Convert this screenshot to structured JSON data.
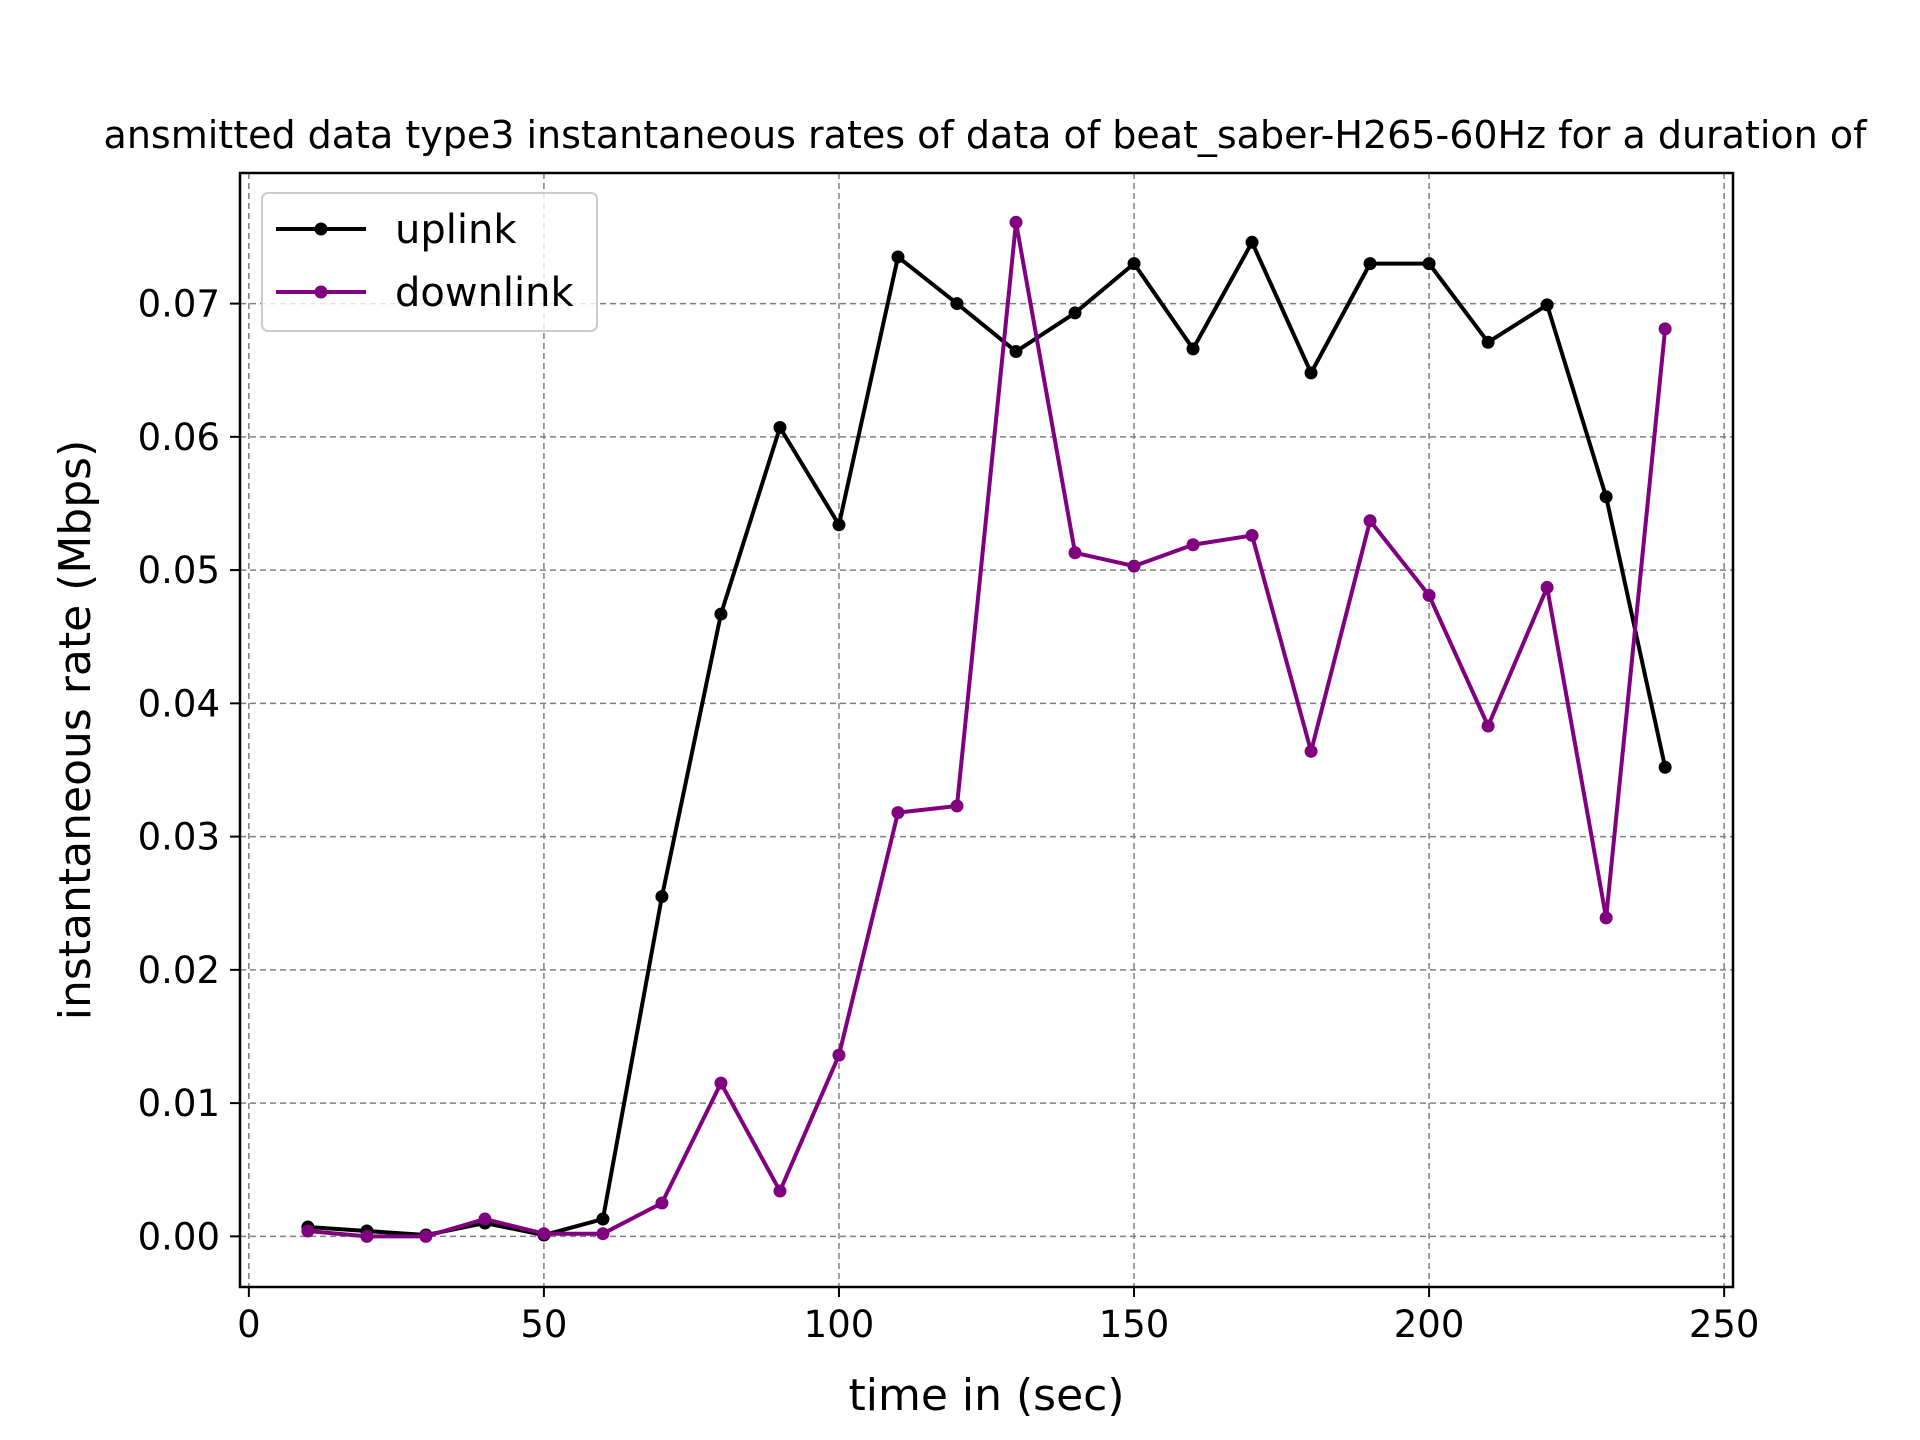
{
  "chart_data": {
    "type": "line",
    "title": "ansmitted data type3 instantaneous rates of data of beat_saber-H265-60Hz for a duration of",
    "xlabel": "time in (sec)",
    "ylabel": "instantaneous rate (Mbps)",
    "xlim": [
      -1.5,
      251.5
    ],
    "ylim": [
      -0.0038,
      0.0798
    ],
    "xticks": [
      0,
      50,
      100,
      150,
      200,
      250
    ],
    "xtick_labels": [
      "0",
      "50",
      "100",
      "150",
      "200",
      "250"
    ],
    "yticks": [
      0.0,
      0.01,
      0.02,
      0.03,
      0.04,
      0.05,
      0.06,
      0.07
    ],
    "ytick_labels": [
      "0.00",
      "0.01",
      "0.02",
      "0.03",
      "0.04",
      "0.05",
      "0.06",
      "0.07"
    ],
    "grid": true,
    "legend_position": "top-left",
    "x": [
      10,
      20,
      30,
      40,
      50,
      60,
      70,
      80,
      90,
      100,
      110,
      120,
      130,
      140,
      150,
      160,
      170,
      180,
      190,
      200,
      210,
      220,
      230,
      240
    ],
    "series": [
      {
        "name": "uplink",
        "color": "#000000",
        "values": [
          0.0007,
          0.0004,
          0.0001,
          0.001,
          0.0001,
          0.0013,
          0.0255,
          0.0467,
          0.0607,
          0.0534,
          0.0735,
          0.07,
          0.0664,
          0.0693,
          0.073,
          0.0666,
          0.0746,
          0.0648,
          0.073,
          0.073,
          0.0671,
          0.0699,
          0.0555,
          0.0352
        ]
      },
      {
        "name": "downlink",
        "color": "#800080",
        "values": [
          0.0004,
          0.0,
          0.0,
          0.0013,
          0.0002,
          0.0002,
          0.0025,
          0.0115,
          0.0034,
          0.0136,
          0.0318,
          0.0323,
          0.0761,
          0.0513,
          0.0503,
          0.0519,
          0.0526,
          0.0364,
          0.0537,
          0.0481,
          0.0383,
          0.0487,
          0.0239,
          0.0681
        ]
      }
    ]
  }
}
